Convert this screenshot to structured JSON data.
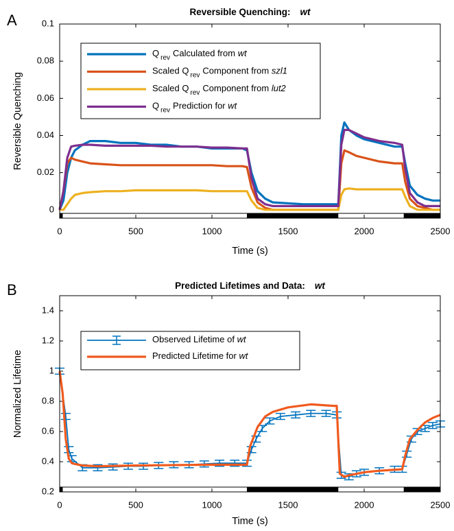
{
  "chart_data": [
    {
      "type": "line",
      "panel_label": "A",
      "title": "Reversible Quenching:",
      "title_italic": "wt",
      "xlabel": "Time (s)",
      "ylabel": "Reversible Quenching",
      "xlim": [
        0,
        2500
      ],
      "xticks": [
        0,
        500,
        1000,
        1500,
        2000,
        2500
      ],
      "ylim": [
        -0.0045,
        0.1
      ],
      "yticks": [
        0,
        0.02,
        0.04,
        0.06,
        0.08,
        0.1
      ],
      "dark_periods": [
        [
          0,
          20
        ],
        [
          1230,
          1830
        ],
        [
          2260,
          2500
        ]
      ],
      "x": [
        0,
        25,
        50,
        75,
        100,
        150,
        200,
        300,
        400,
        500,
        600,
        700,
        800,
        900,
        1000,
        1100,
        1200,
        1230,
        1260,
        1300,
        1350,
        1400,
        1500,
        1600,
        1700,
        1800,
        1830,
        1850,
        1870,
        1900,
        1950,
        2000,
        2100,
        2200,
        2250,
        2270,
        2300,
        2350,
        2400,
        2450,
        2500
      ],
      "series": [
        {
          "name": [
            {
              "text": "Q"
            },
            {
              "text": "rev",
              "sub": true
            },
            {
              "text": "Calculated from "
            },
            {
              "text": "wt",
              "italic": true
            }
          ],
          "color": "#0072bd",
          "values": [
            0,
            0.005,
            0.02,
            0.028,
            0.032,
            0.035,
            0.037,
            0.037,
            0.036,
            0.036,
            0.035,
            0.035,
            0.034,
            0.034,
            0.033,
            0.033,
            0.033,
            0.032,
            0.02,
            0.01,
            0.006,
            0.004,
            0.0035,
            0.003,
            0.003,
            0.003,
            0.003,
            0.04,
            0.047,
            0.043,
            0.04,
            0.038,
            0.036,
            0.034,
            0.034,
            0.025,
            0.013,
            0.008,
            0.006,
            0.005,
            0.005
          ]
        },
        {
          "name": [
            {
              "text": "Scaled Q"
            },
            {
              "text": "rev",
              "sub": true
            },
            {
              "text": "Component from "
            },
            {
              "text": "szl1",
              "italic": true
            }
          ],
          "color": "#d95319",
          "values": [
            0,
            0.01,
            0.025,
            0.028,
            0.027,
            0.026,
            0.025,
            0.0245,
            0.024,
            0.024,
            0.024,
            0.024,
            0.024,
            0.024,
            0.024,
            0.0235,
            0.0235,
            0.023,
            0.012,
            0.004,
            0.001,
            0,
            0,
            0,
            0,
            0,
            0,
            0.025,
            0.032,
            0.031,
            0.029,
            0.028,
            0.026,
            0.025,
            0.025,
            0.015,
            0.006,
            0.002,
            0.001,
            0,
            0
          ]
        },
        {
          "name": [
            {
              "text": "Scaled Q"
            },
            {
              "text": "rev",
              "sub": true
            },
            {
              "text": "Component from "
            },
            {
              "text": "lut2",
              "italic": true
            }
          ],
          "color": "#edb120",
          "values": [
            0,
            0,
            0.003,
            0.006,
            0.008,
            0.009,
            0.0095,
            0.01,
            0.01,
            0.0105,
            0.0105,
            0.0105,
            0.0105,
            0.0105,
            0.01,
            0.01,
            0.01,
            0.01,
            0.005,
            0.001,
            0,
            0,
            0,
            0,
            0,
            0,
            0,
            0.008,
            0.011,
            0.0115,
            0.011,
            0.011,
            0.011,
            0.011,
            0.011,
            0.007,
            0.002,
            0,
            0,
            0,
            0
          ]
        },
        {
          "name": [
            {
              "text": "Q"
            },
            {
              "text": "rev",
              "sub": true
            },
            {
              "text": "Prediction for "
            },
            {
              "text": "wt",
              "italic": true
            }
          ],
          "color": "#7e2f8e",
          "values": [
            0,
            0.01,
            0.028,
            0.034,
            0.0345,
            0.035,
            0.035,
            0.0345,
            0.0345,
            0.0345,
            0.0345,
            0.034,
            0.034,
            0.034,
            0.0335,
            0.0335,
            0.033,
            0.033,
            0.017,
            0.006,
            0.003,
            0.002,
            0.002,
            0.002,
            0.002,
            0.002,
            0.002,
            0.035,
            0.043,
            0.043,
            0.041,
            0.039,
            0.037,
            0.036,
            0.035,
            0.022,
            0.009,
            0.004,
            0.002,
            0.002,
            0.002
          ]
        }
      ]
    },
    {
      "type": "line",
      "panel_label": "B",
      "title": "Predicted Lifetimes and Data:",
      "title_italic": "wt",
      "xlabel": "Time (s)",
      "ylabel": "Normalized Lifetime",
      "xlim": [
        0,
        2500
      ],
      "xticks": [
        0,
        500,
        1000,
        1500,
        2000,
        2500
      ],
      "ylim": [
        0.2,
        1.5
      ],
      "yticks": [
        0.2,
        0.4,
        0.6,
        0.8,
        1,
        1.2,
        1.4
      ],
      "dark_periods": [
        [
          0,
          20
        ],
        [
          1230,
          1830
        ],
        [
          2260,
          2500
        ]
      ],
      "series": [
        {
          "name": [
            {
              "text": "Observed Lifetime of "
            },
            {
              "text": "wt",
              "italic": true
            }
          ],
          "color": "#0072bd",
          "x": [
            0,
            40,
            60,
            80,
            150,
            250,
            350,
            450,
            550,
            650,
            750,
            850,
            950,
            1050,
            1150,
            1230,
            1260,
            1290,
            1330,
            1380,
            1450,
            1550,
            1650,
            1750,
            1820,
            1850,
            1900,
            1950,
            2000,
            2100,
            2200,
            2250,
            2280,
            2310,
            2350,
            2400,
            2450,
            2500
          ],
          "values": [
            1.0,
            0.7,
            0.48,
            0.42,
            0.36,
            0.36,
            0.365,
            0.37,
            0.37,
            0.375,
            0.38,
            0.38,
            0.385,
            0.39,
            0.39,
            0.39,
            0.48,
            0.55,
            0.62,
            0.67,
            0.7,
            0.71,
            0.72,
            0.72,
            0.71,
            0.31,
            0.3,
            0.32,
            0.33,
            0.34,
            0.35,
            0.35,
            0.45,
            0.55,
            0.6,
            0.62,
            0.64,
            0.65
          ],
          "errors": [
            0.02,
            0.02,
            0.02,
            0.02,
            0.02,
            0.02,
            0.02,
            0.02,
            0.02,
            0.02,
            0.02,
            0.02,
            0.02,
            0.02,
            0.02,
            0.02,
            0.02,
            0.02,
            0.02,
            0.02,
            0.02,
            0.02,
            0.02,
            0.02,
            0.02,
            0.02,
            0.02,
            0.02,
            0.02,
            0.02,
            0.02,
            0.02,
            0.02,
            0.02,
            0.02,
            0.02,
            0.02,
            0.02
          ]
        },
        {
          "name": [
            {
              "text": "Predicted Lifetime for "
            },
            {
              "text": "wt",
              "italic": true
            }
          ],
          "color": "#f05a1e",
          "x": [
            0,
            20,
            40,
            60,
            80,
            100,
            150,
            250,
            500,
            1000,
            1230,
            1250,
            1300,
            1350,
            1400,
            1500,
            1650,
            1800,
            1820,
            1840,
            1870,
            1900,
            2000,
            2100,
            2250,
            2270,
            2300,
            2350,
            2400,
            2450,
            2500
          ],
          "values": [
            1.0,
            0.85,
            0.55,
            0.42,
            0.39,
            0.385,
            0.375,
            0.37,
            0.375,
            0.38,
            0.38,
            0.5,
            0.63,
            0.7,
            0.73,
            0.76,
            0.78,
            0.77,
            0.77,
            0.32,
            0.3,
            0.31,
            0.33,
            0.34,
            0.35,
            0.44,
            0.55,
            0.61,
            0.66,
            0.69,
            0.71
          ]
        }
      ]
    }
  ]
}
